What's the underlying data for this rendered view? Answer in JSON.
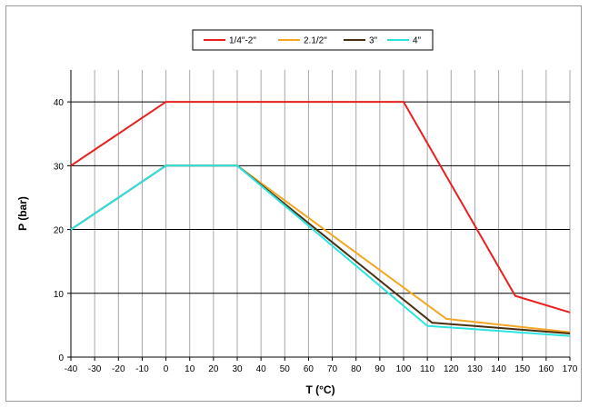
{
  "chart_data": {
    "type": "line",
    "xlabel": "T (°C)",
    "ylabel": "P (bar)",
    "xlim": [
      -40,
      170
    ],
    "ylim": [
      0,
      45
    ],
    "x_ticks": [
      -40,
      -30,
      -20,
      -10,
      0,
      10,
      20,
      30,
      40,
      50,
      60,
      70,
      80,
      90,
      100,
      110,
      120,
      130,
      140,
      150,
      160,
      170
    ],
    "y_ticks": [
      0,
      10,
      20,
      30,
      40
    ],
    "grid": "on",
    "legend_position": "top",
    "series": [
      {
        "name": "1/4\"-2\"",
        "color": "#e8201e",
        "points": [
          [
            -40,
            30
          ],
          [
            0,
            40
          ],
          [
            100,
            40
          ],
          [
            147,
            9.6
          ],
          [
            170,
            7.0
          ]
        ]
      },
      {
        "name": "2.1/2\"",
        "color": "#f5a623",
        "points": [
          [
            -40,
            20
          ],
          [
            0,
            30
          ],
          [
            30,
            30
          ],
          [
            118,
            6.0
          ],
          [
            170,
            3.9
          ]
        ]
      },
      {
        "name": "3\"",
        "color": "#4a2e10",
        "points": [
          [
            -40,
            20
          ],
          [
            0,
            30
          ],
          [
            30,
            30
          ],
          [
            112,
            5.4
          ],
          [
            170,
            3.7
          ]
        ]
      },
      {
        "name": "4\"",
        "color": "#2de3e0",
        "points": [
          [
            -40,
            20
          ],
          [
            0,
            30
          ],
          [
            30,
            30
          ],
          [
            110,
            4.9
          ],
          [
            170,
            3.3
          ]
        ]
      }
    ]
  }
}
